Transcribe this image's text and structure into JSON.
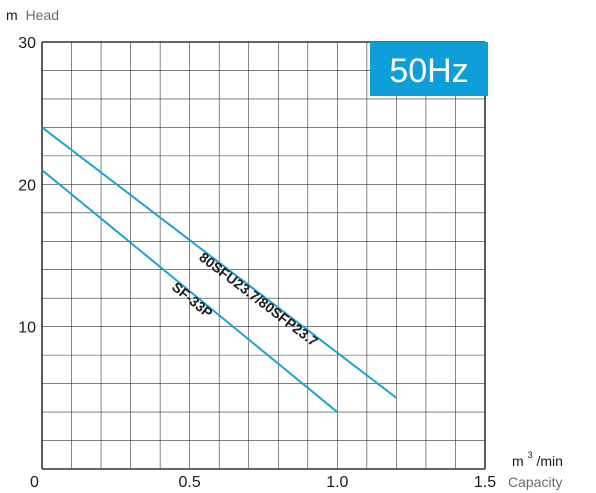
{
  "chart_data": {
    "type": "line",
    "badge": "50Hz",
    "y_unit": "m",
    "y_name": "Head",
    "x_unit_base": "m",
    "x_unit_exp": "3",
    "x_unit_tail": "/min",
    "x_name": "Capacity",
    "xlim": [
      0,
      1.5
    ],
    "ylim": [
      0,
      30
    ],
    "x_ticks": [
      {
        "v": 0,
        "label": "0"
      },
      {
        "v": 0.5,
        "label": "0.5"
      },
      {
        "v": 1.0,
        "label": "1.0"
      },
      {
        "v": 1.5,
        "label": "1.5"
      }
    ],
    "y_ticks": [
      {
        "v": 10,
        "label": "10"
      },
      {
        "v": 20,
        "label": "20"
      },
      {
        "v": 30,
        "label": "30"
      }
    ],
    "grid": true,
    "colors": {
      "curve": "#1ba3d6",
      "badge_bg": "#0f9fd8",
      "badge_text": "#ffffff",
      "grid": "#333333"
    },
    "series": [
      {
        "name": "80SFU23.7/80SFP23.7",
        "x": [
          0,
          1.2
        ],
        "y": [
          24,
          5
        ]
      },
      {
        "name": "SF-33P",
        "x": [
          0,
          1.0
        ],
        "y": [
          21,
          4
        ]
      }
    ]
  }
}
